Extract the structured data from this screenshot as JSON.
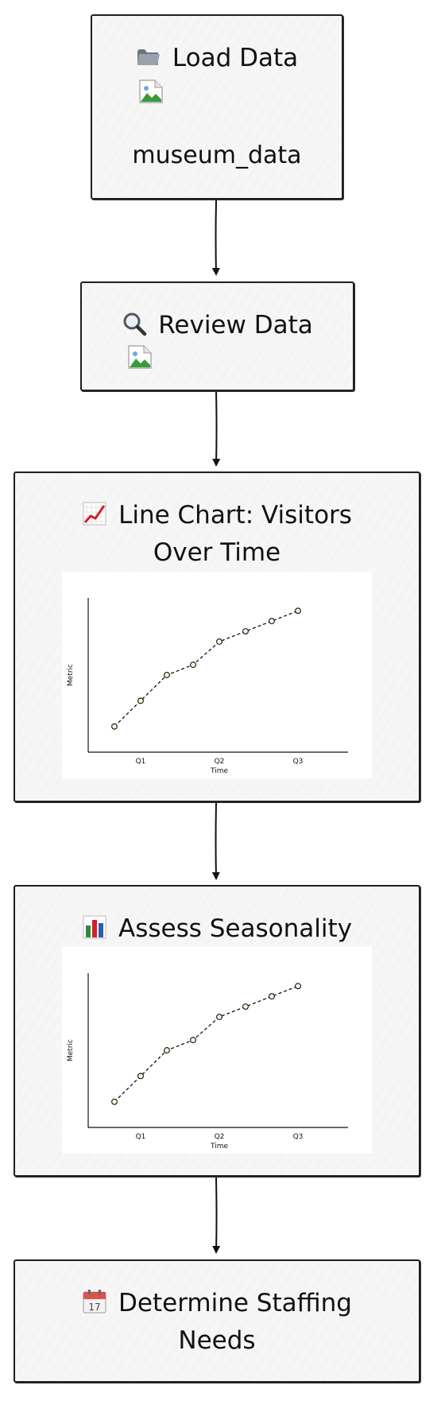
{
  "nodes": {
    "load": {
      "icon": "folder-icon",
      "title": "Load Data",
      "subtext": "museum_data"
    },
    "review": {
      "icon": "magnifier-icon",
      "title": "Review Data"
    },
    "linechart": {
      "icon": "chart-up-icon",
      "title_line1": "Line Chart: Visitors",
      "title_line2": "Over Time"
    },
    "seasonality": {
      "icon": "bar-chart-icon",
      "title": "Assess Seasonality"
    },
    "staffing": {
      "icon": "calendar-icon",
      "calendar_day": "17",
      "title_line1": "Determine Staffing",
      "title_line2": "Needs"
    }
  },
  "edges": [
    {
      "from": "load",
      "to": "review"
    },
    {
      "from": "review",
      "to": "linechart"
    },
    {
      "from": "linechart",
      "to": "seasonality"
    },
    {
      "from": "seasonality",
      "to": "staffing"
    }
  ],
  "chart_data": [
    {
      "type": "line",
      "xlabel": "Time",
      "ylabel": "Metric",
      "x_ticks": [
        "Q1",
        "Q2",
        "Q3"
      ],
      "x": [
        0,
        1,
        2,
        3,
        4,
        5,
        6,
        7
      ],
      "values": [
        1.0,
        2.0,
        3.0,
        3.4,
        4.3,
        4.7,
        5.1,
        5.5
      ],
      "ylim": [
        0,
        6
      ]
    },
    {
      "type": "line",
      "xlabel": "Time",
      "ylabel": "Metric",
      "x_ticks": [
        "Q1",
        "Q2",
        "Q3"
      ],
      "x": [
        0,
        1,
        2,
        3,
        4,
        5,
        6,
        7
      ],
      "values": [
        1.0,
        2.0,
        3.0,
        3.4,
        4.3,
        4.7,
        5.1,
        5.5
      ],
      "ylim": [
        0,
        6
      ]
    }
  ]
}
